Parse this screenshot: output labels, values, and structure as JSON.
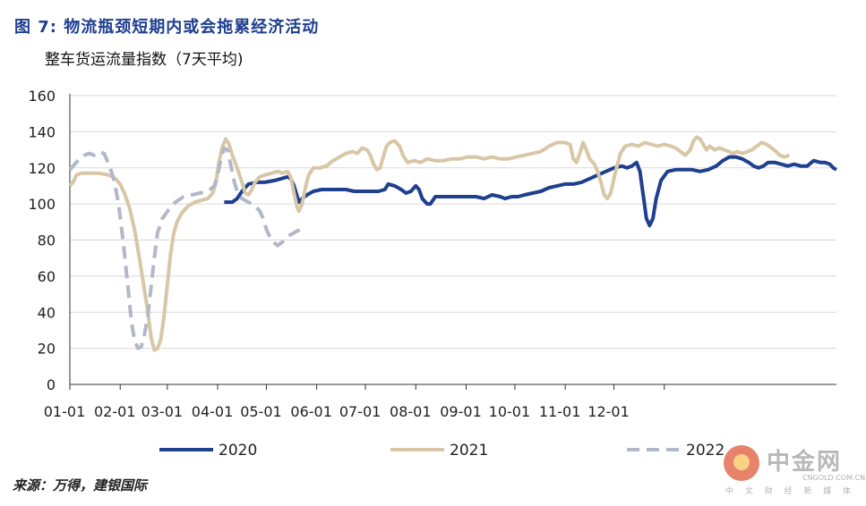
{
  "title": "图 7: 物流瓶颈短期内或会拖累经济活动",
  "subtitle": "整车货运流量指数（7天平均)",
  "source": "来源：万得，建银国际",
  "watermark": {
    "name": "中金网",
    "domain": "CNGOLD.COM.CN",
    "tagline": "中 文 财 经 新 媒 体"
  },
  "chart_data": {
    "type": "line",
    "x_tick_labels": [
      "01-01",
      "02-01",
      "03-01",
      "04-01",
      "05-01",
      "06-01",
      "07-01",
      "08-01",
      "09-01",
      "10-01",
      "11-01",
      "12-01"
    ],
    "ylim": [
      0,
      160
    ],
    "y_ticks": [
      0,
      20,
      40,
      60,
      80,
      100,
      120,
      140,
      160
    ],
    "grid": true,
    "legend_position": "bottom",
    "series": [
      {
        "name": "2020",
        "color": "#1f3f8f",
        "dash": false,
        "points": [
          [
            95,
            101
          ],
          [
            100,
            101
          ],
          [
            103,
            103
          ],
          [
            106,
            107
          ],
          [
            110,
            111
          ],
          [
            115,
            112
          ],
          [
            120,
            112
          ],
          [
            126,
            113
          ],
          [
            130,
            114
          ],
          [
            134,
            115
          ],
          [
            136,
            114
          ],
          [
            138,
            110
          ],
          [
            140,
            104
          ],
          [
            141,
            101
          ],
          [
            143,
            103
          ],
          [
            146,
            105
          ],
          [
            150,
            107
          ],
          [
            155,
            108
          ],
          [
            160,
            108
          ],
          [
            165,
            108
          ],
          [
            170,
            108
          ],
          [
            175,
            107
          ],
          [
            180,
            107
          ],
          [
            185,
            107
          ],
          [
            190,
            107
          ],
          [
            194,
            108
          ],
          [
            196,
            111
          ],
          [
            200,
            110
          ],
          [
            204,
            108
          ],
          [
            207,
            106
          ],
          [
            210,
            107
          ],
          [
            213,
            110
          ],
          [
            215,
            108
          ],
          [
            217,
            103
          ],
          [
            220,
            100
          ],
          [
            222,
            100
          ],
          [
            225,
            104
          ],
          [
            230,
            104
          ],
          [
            235,
            104
          ],
          [
            240,
            104
          ],
          [
            245,
            104
          ],
          [
            250,
            104
          ],
          [
            255,
            103
          ],
          [
            260,
            105
          ],
          [
            265,
            104
          ],
          [
            268,
            103
          ],
          [
            272,
            104
          ],
          [
            276,
            104
          ],
          [
            280,
            105
          ],
          [
            285,
            106
          ],
          [
            290,
            107
          ],
          [
            295,
            109
          ],
          [
            300,
            110
          ],
          [
            305,
            111
          ],
          [
            310,
            111
          ],
          [
            315,
            112
          ],
          [
            320,
            114
          ],
          [
            325,
            116
          ],
          [
            330,
            118
          ],
          [
            335,
            120
          ],
          [
            340,
            121
          ],
          [
            343,
            120
          ],
          [
            346,
            121
          ],
          [
            349,
            123
          ],
          [
            351,
            118
          ],
          [
            353,
            105
          ],
          [
            355,
            92
          ],
          [
            357,
            88
          ],
          [
            359,
            92
          ],
          [
            361,
            103
          ],
          [
            364,
            113
          ],
          [
            368,
            118
          ],
          [
            373,
            119
          ],
          [
            378,
            119
          ],
          [
            383,
            119
          ],
          [
            388,
            118
          ],
          [
            393,
            119
          ],
          [
            398,
            121
          ],
          [
            402,
            124
          ],
          [
            406,
            126
          ],
          [
            410,
            126
          ],
          [
            414,
            125
          ],
          [
            418,
            123
          ],
          [
            421,
            121
          ],
          [
            424,
            120
          ],
          [
            427,
            121
          ],
          [
            430,
            123
          ],
          [
            434,
            123
          ],
          [
            438,
            122
          ],
          [
            442,
            121
          ],
          [
            446,
            122
          ],
          [
            450,
            121
          ],
          [
            454,
            121
          ],
          [
            458,
            124
          ],
          [
            462,
            123
          ],
          [
            465,
            123
          ],
          [
            468,
            122
          ],
          [
            470,
            120
          ],
          [
            472,
            119
          ]
        ]
      },
      {
        "name": "2021",
        "color": "#d8c7a6",
        "dash": false,
        "points": [
          [
            0,
            110
          ],
          [
            2,
            112
          ],
          [
            4,
            116
          ],
          [
            7,
            117
          ],
          [
            12,
            117
          ],
          [
            18,
            117
          ],
          [
            24,
            116
          ],
          [
            28,
            114
          ],
          [
            31,
            111
          ],
          [
            34,
            105
          ],
          [
            37,
            97
          ],
          [
            40,
            85
          ],
          [
            43,
            69
          ],
          [
            46,
            52
          ],
          [
            48,
            40
          ],
          [
            50,
            26
          ],
          [
            52,
            19
          ],
          [
            54,
            20
          ],
          [
            56,
            25
          ],
          [
            58,
            38
          ],
          [
            60,
            55
          ],
          [
            62,
            72
          ],
          [
            64,
            84
          ],
          [
            66,
            90
          ],
          [
            69,
            95
          ],
          [
            73,
            99
          ],
          [
            77,
            101
          ],
          [
            81,
            102
          ],
          [
            85,
            103
          ],
          [
            88,
            106
          ],
          [
            90,
            112
          ],
          [
            92,
            124
          ],
          [
            94,
            132
          ],
          [
            96,
            136
          ],
          [
            98,
            133
          ],
          [
            100,
            127
          ],
          [
            103,
            120
          ],
          [
            106,
            112
          ],
          [
            108,
            106
          ],
          [
            110,
            105
          ],
          [
            112,
            108
          ],
          [
            114,
            112
          ],
          [
            117,
            115
          ],
          [
            120,
            116
          ],
          [
            124,
            117
          ],
          [
            128,
            118
          ],
          [
            131,
            117
          ],
          [
            134,
            118
          ],
          [
            136,
            115
          ],
          [
            138,
            106
          ],
          [
            140,
            98
          ],
          [
            141,
            96
          ],
          [
            143,
            100
          ],
          [
            145,
            109
          ],
          [
            147,
            116
          ],
          [
            150,
            120
          ],
          [
            154,
            120
          ],
          [
            158,
            121
          ],
          [
            162,
            124
          ],
          [
            166,
            126
          ],
          [
            170,
            128
          ],
          [
            174,
            129
          ],
          [
            177,
            128
          ],
          [
            180,
            131
          ],
          [
            183,
            130
          ],
          [
            185,
            127
          ],
          [
            187,
            122
          ],
          [
            189,
            119
          ],
          [
            191,
            120
          ],
          [
            193,
            126
          ],
          [
            195,
            132
          ],
          [
            197,
            134
          ],
          [
            200,
            135
          ],
          [
            203,
            132
          ],
          [
            205,
            127
          ],
          [
            208,
            123
          ],
          [
            212,
            124
          ],
          [
            216,
            123
          ],
          [
            220,
            125
          ],
          [
            225,
            124
          ],
          [
            230,
            124
          ],
          [
            235,
            125
          ],
          [
            240,
            125
          ],
          [
            245,
            126
          ],
          [
            250,
            126
          ],
          [
            255,
            125
          ],
          [
            260,
            126
          ],
          [
            265,
            125
          ],
          [
            270,
            125
          ],
          [
            275,
            126
          ],
          [
            280,
            127
          ],
          [
            285,
            128
          ],
          [
            290,
            129
          ],
          [
            295,
            132
          ],
          [
            300,
            134
          ],
          [
            305,
            134
          ],
          [
            308,
            133
          ],
          [
            310,
            125
          ],
          [
            312,
            123
          ],
          [
            314,
            128
          ],
          [
            316,
            134
          ],
          [
            318,
            130
          ],
          [
            320,
            125
          ],
          [
            323,
            122
          ],
          [
            325,
            118
          ],
          [
            327,
            112
          ],
          [
            329,
            105
          ],
          [
            331,
            103
          ],
          [
            333,
            106
          ],
          [
            336,
            118
          ],
          [
            339,
            128
          ],
          [
            342,
            132
          ],
          [
            346,
            133
          ],
          [
            350,
            132
          ],
          [
            354,
            134
          ],
          [
            358,
            133
          ],
          [
            362,
            132
          ],
          [
            366,
            133
          ],
          [
            370,
            132
          ],
          [
            373,
            131
          ],
          [
            376,
            129
          ],
          [
            379,
            127
          ],
          [
            382,
            130
          ],
          [
            384,
            135
          ],
          [
            386,
            137
          ],
          [
            388,
            136
          ],
          [
            390,
            133
          ],
          [
            392,
            130
          ],
          [
            394,
            132
          ],
          [
            397,
            130
          ],
          [
            400,
            131
          ],
          [
            403,
            130
          ],
          [
            406,
            129
          ],
          [
            408,
            128
          ],
          [
            411,
            129
          ],
          [
            414,
            128
          ],
          [
            417,
            129
          ],
          [
            420,
            130
          ],
          [
            423,
            132
          ],
          [
            426,
            134
          ],
          [
            429,
            133
          ],
          [
            432,
            131
          ],
          [
            435,
            129
          ],
          [
            437,
            127
          ],
          [
            440,
            126
          ],
          [
            443,
            127
          ]
        ]
      },
      {
        "name": "2022",
        "color": "#b3b8c8",
        "dash": true,
        "points": [
          [
            0,
            119
          ],
          [
            3,
            122
          ],
          [
            6,
            125
          ],
          [
            9,
            127
          ],
          [
            12,
            128
          ],
          [
            15,
            127
          ],
          [
            18,
            129
          ],
          [
            21,
            128
          ],
          [
            24,
            122
          ],
          [
            27,
            114
          ],
          [
            30,
            100
          ],
          [
            33,
            78
          ],
          [
            36,
            52
          ],
          [
            38,
            34
          ],
          [
            40,
            24
          ],
          [
            42,
            20
          ],
          [
            44,
            21
          ],
          [
            46,
            28
          ],
          [
            48,
            38
          ],
          [
            50,
            54
          ],
          [
            52,
            70
          ],
          [
            54,
            84
          ],
          [
            57,
            92
          ],
          [
            61,
            97
          ],
          [
            65,
            101
          ],
          [
            70,
            104
          ],
          [
            75,
            105
          ],
          [
            80,
            106
          ],
          [
            85,
            107
          ],
          [
            89,
            110
          ],
          [
            91,
            116
          ],
          [
            93,
            125
          ],
          [
            95,
            131
          ],
          [
            97,
            130
          ],
          [
            99,
            122
          ],
          [
            101,
            113
          ],
          [
            103,
            107
          ],
          [
            106,
            103
          ],
          [
            110,
            101
          ],
          [
            114,
            99
          ],
          [
            117,
            96
          ],
          [
            119,
            92
          ],
          [
            121,
            86
          ],
          [
            123,
            82
          ],
          [
            125,
            79
          ],
          [
            128,
            77
          ],
          [
            131,
            79
          ],
          [
            134,
            82
          ],
          [
            138,
            84
          ],
          [
            142,
            86
          ]
        ]
      }
    ]
  }
}
